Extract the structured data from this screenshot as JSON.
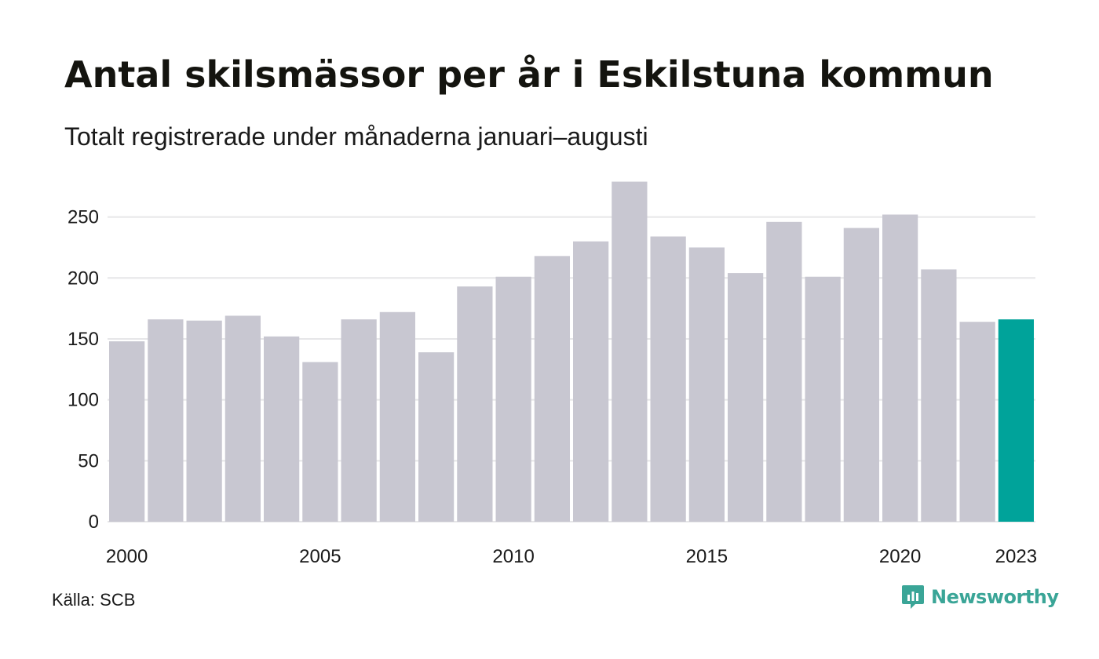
{
  "title": "Antal skilsmässor per år i Eskilstuna kommun",
  "subtitle": "Totalt registrerade under månaderna januari–augusti",
  "source": "Källa: SCB",
  "brand": {
    "name": "Newsworthy",
    "icon": "newsworthy-logo-icon",
    "color": "#3aa597"
  },
  "colors": {
    "bar": "#c8c7d1",
    "highlight": "#00a39a",
    "grid": "#e6e6e8"
  },
  "chart_data": {
    "type": "bar",
    "categories": [
      "2000",
      "2001",
      "2002",
      "2003",
      "2004",
      "2005",
      "2006",
      "2007",
      "2008",
      "2009",
      "2010",
      "2011",
      "2012",
      "2013",
      "2014",
      "2015",
      "2016",
      "2017",
      "2018",
      "2019",
      "2020",
      "2021",
      "2022",
      "2023"
    ],
    "values": [
      148,
      166,
      165,
      169,
      152,
      131,
      166,
      172,
      139,
      193,
      201,
      218,
      230,
      279,
      234,
      225,
      204,
      246,
      201,
      241,
      252,
      207,
      164,
      166
    ],
    "highlight": "2023",
    "x_tick_labels": [
      "2000",
      "2005",
      "2010",
      "2015",
      "2020",
      "2023"
    ],
    "y_ticks": [
      0,
      50,
      100,
      150,
      200,
      250
    ],
    "ylim": [
      0,
      280
    ],
    "grid": true
  }
}
